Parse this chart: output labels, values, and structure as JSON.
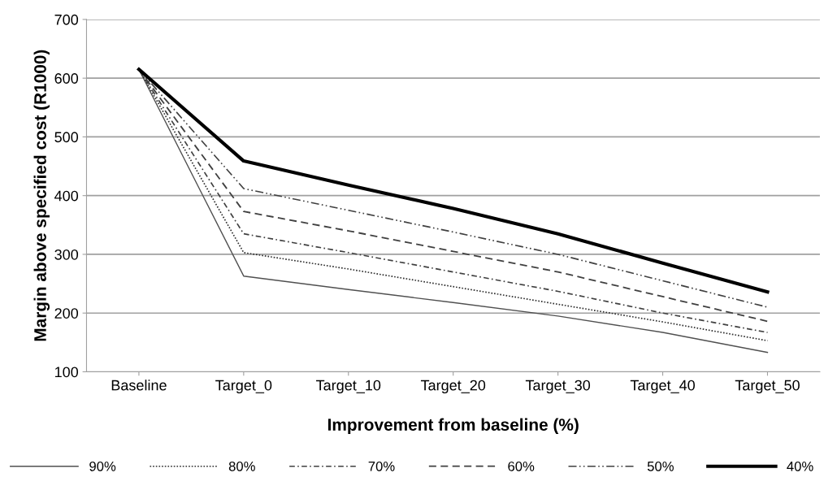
{
  "chart_data": {
    "type": "line",
    "xlabel": "Improvement from baseline (%)",
    "ylabel": "Margin above specified cost (R1000)",
    "categories": [
      "Baseline",
      "Target_0",
      "Target_10",
      "Target_20",
      "Target_30",
      "Target_40",
      "Target_50"
    ],
    "ylim": [
      100,
      700
    ],
    "yticks": [
      100,
      200,
      300,
      400,
      500,
      600,
      700
    ],
    "grid": "y",
    "legend": "bottom",
    "marker": "none",
    "series": [
      {
        "name": "90%",
        "color": "#505050",
        "line_style": "solid",
        "values": [
          615,
          263,
          240,
          218,
          195,
          167,
          133
        ]
      },
      {
        "name": "80%",
        "color": "#303030",
        "line_style": "dotted",
        "values": [
          615,
          303,
          275,
          245,
          215,
          185,
          153
        ]
      },
      {
        "name": "70%",
        "color": "#404040",
        "line_style": "dashdot",
        "values": [
          615,
          335,
          303,
          270,
          237,
          200,
          167
        ]
      },
      {
        "name": "60%",
        "color": "#404040",
        "line_style": "dashed",
        "values": [
          615,
          373,
          340,
          305,
          270,
          228,
          186
        ]
      },
      {
        "name": "50%",
        "color": "#404040",
        "line_style": "dashdotdot",
        "values": [
          615,
          412,
          375,
          338,
          300,
          255,
          210
        ]
      },
      {
        "name": "40%",
        "color": "#000000",
        "line_style": "solid",
        "values": [
          615,
          459,
          418,
          378,
          335,
          285,
          236
        ]
      }
    ]
  }
}
